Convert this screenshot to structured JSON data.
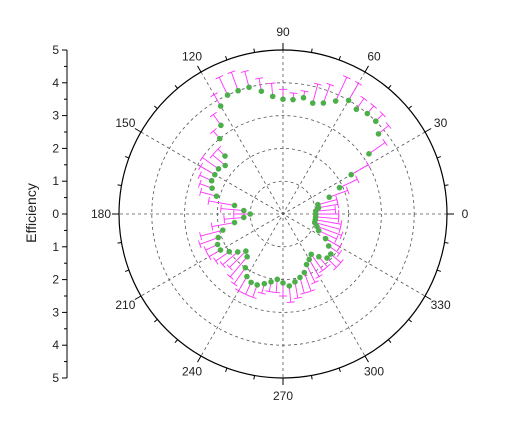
{
  "chart_data": {
    "type": "scatter",
    "coordinate_system": "polar",
    "title": "",
    "ylabel": "Efficiency",
    "r_range": [
      0,
      5
    ],
    "r_ticks": [
      "5",
      "4",
      "3",
      "2",
      "1",
      "0",
      "1",
      "2",
      "3",
      "4",
      "5"
    ],
    "angle_ticks": [
      "0",
      "30",
      "60",
      "90",
      "120",
      "150",
      "180",
      "210",
      "240",
      "270",
      "300",
      "330"
    ],
    "grid": true,
    "colors": {
      "points": "#4daf4a",
      "error_bars": "#ff33ff",
      "grid": "#555555",
      "axis": "#000000"
    },
    "series": [
      {
        "marker": "circle",
        "error_bars": "radial, positive direction",
        "theta": [
          0,
          5,
          10,
          15,
          20,
          25,
          30,
          35,
          40,
          45,
          50,
          55,
          60,
          65,
          70,
          75,
          80,
          85,
          90,
          95,
          100,
          105,
          110,
          115,
          120,
          125,
          130,
          135,
          140,
          145,
          150,
          155,
          160,
          165,
          170,
          175,
          180,
          185,
          190,
          195,
          200,
          205,
          210,
          215,
          220,
          225,
          230,
          235,
          240,
          245,
          250,
          255,
          260,
          265,
          270,
          275,
          280,
          285,
          290,
          295,
          300,
          305,
          310,
          315,
          320,
          325,
          330,
          335,
          340,
          345,
          350,
          355
        ],
        "r": [
          1.0,
          1.0,
          1.1,
          1.1,
          1.5,
          1.9,
          2.4,
          3.2,
          3.8,
          4.0,
          4.0,
          3.9,
          4.0,
          3.8,
          3.6,
          3.5,
          3.6,
          3.5,
          3.5,
          3.6,
          3.8,
          4.0,
          4.0,
          4.0,
          3.8,
          3.3,
          3.0,
          2.5,
          2.3,
          2.4,
          2.4,
          2.4,
          2.3,
          2.1,
          1.5,
          1.2,
          1.0,
          1.2,
          1.5,
          1.9,
          2.1,
          2.2,
          2.2,
          2.0,
          1.8,
          1.6,
          1.7,
          2.0,
          2.2,
          2.3,
          2.3,
          2.2,
          2.1,
          2.0,
          2.1,
          2.2,
          2.1,
          2.0,
          1.9,
          1.7,
          1.6,
          1.5,
          1.7,
          1.9,
          1.9,
          1.7,
          1.5,
          1.2,
          1.1,
          1.0,
          1.0,
          1.0
        ],
        "err": [
          0.7,
          0.6,
          0.6,
          0.6,
          0.6,
          0.6,
          0.6,
          0.6,
          0.4,
          0.3,
          0.3,
          0.4,
          0.6,
          0.8,
          0.6,
          0.6,
          0.2,
          0.2,
          0.3,
          0.4,
          0.4,
          0.5,
          0.6,
          0.6,
          0.4,
          0.4,
          0.3,
          0.3,
          0.5,
          0.6,
          0.5,
          0.4,
          0.4,
          0.5,
          0.8,
          0.7,
          0.5,
          0.6,
          0.7,
          0.7,
          0.6,
          0.4,
          0.4,
          0.5,
          0.6,
          0.7,
          0.8,
          0.6,
          0.5,
          0.4,
          0.4,
          0.3,
          0.3,
          0.4,
          0.4,
          0.5,
          0.5,
          0.5,
          0.6,
          0.6,
          0.6,
          0.6,
          0.4,
          0.4,
          0.4,
          0.4,
          0.5,
          0.6,
          0.8,
          0.8,
          0.8,
          0.7
        ]
      }
    ]
  }
}
